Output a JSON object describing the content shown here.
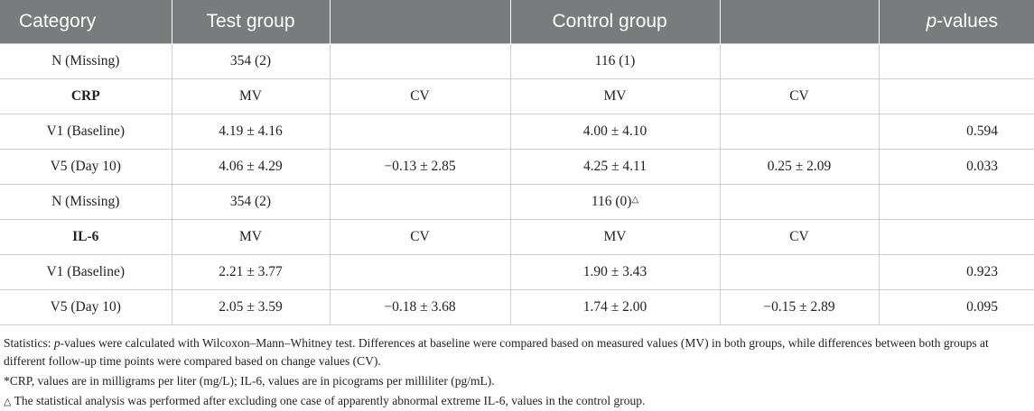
{
  "header": {
    "category": "Category",
    "test_group": "Test group",
    "control_group": "Control group",
    "p_italic": "p",
    "p_rest": "-values"
  },
  "rows": [
    [
      "N (Missing)",
      "354 (2)",
      "",
      "116 (1)",
      "",
      ""
    ],
    [
      "CRP",
      "MV",
      "CV",
      "MV",
      "CV",
      ""
    ],
    [
      "V1 (Baseline)",
      "4.19 ± 4.16",
      "",
      "4.00 ± 4.10",
      "",
      "0.594"
    ],
    [
      "V5 (Day 10)",
      "4.06 ± 4.29",
      "−0.13 ± 2.85",
      "4.25 ± 4.11",
      "0.25 ± 2.09",
      "0.033"
    ],
    [
      "N (Missing)",
      "354 (2)",
      "",
      "116 (0)",
      "",
      ""
    ],
    [
      "IL-6",
      "MV",
      "CV",
      "MV",
      "CV",
      ""
    ],
    [
      "V1 (Baseline)",
      "2.21 ± 3.77",
      "",
      "1.90 ± 3.43",
      "",
      "0.923"
    ],
    [
      "V5 (Day 10)",
      "2.05 ± 3.59",
      "−0.18 ± 3.68",
      "1.74 ± 2.00",
      "−0.15 ± 2.89",
      "0.095"
    ]
  ],
  "triangle_mark": "△",
  "notes": {
    "stats_prefix": "Statistics: ",
    "stats_italic": "p",
    "stats_text": "-values were calculated with Wilcoxon–Mann–Whitney test. Differences at baseline were compared based on measured values (MV) in both groups, while differences between both groups at different follow-up time points were compared based on change values (CV).",
    "units": "*CRP, values are in milligrams per liter (mg/L); IL-6, values are in picograms per milliliter (pg/mL).",
    "triangle": "△",
    "exclusion": " The statistical analysis was performed after excluding one case of apparently abnormal extreme IL-6, values in the control group."
  }
}
